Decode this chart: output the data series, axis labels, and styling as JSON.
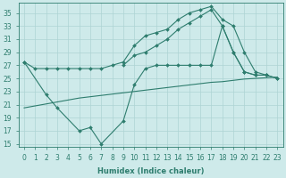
{
  "bg_color": "#ceeaea",
  "line_color": "#2e7d6e",
  "grid_color": "#aed4d4",
  "xlabel": "Humidex (Indice chaleur)",
  "ylim": [
    14.5,
    36.5
  ],
  "xlim": [
    -0.5,
    23.5
  ],
  "yticks": [
    15,
    17,
    19,
    21,
    23,
    25,
    27,
    29,
    31,
    33,
    35
  ],
  "line1_x": [
    0,
    1,
    2,
    3,
    4,
    5,
    6,
    7,
    8,
    9,
    10,
    11,
    12,
    13,
    14,
    15,
    16,
    17,
    18,
    19,
    20,
    21,
    22
  ],
  "line1_y": [
    27.5,
    26.5,
    26.5,
    26.5,
    26.5,
    26.5,
    26.5,
    26.5,
    27.0,
    27.5,
    30.0,
    31.5,
    32.0,
    32.5,
    34.0,
    35.0,
    35.5,
    36.0,
    34.0,
    33.0,
    29.0,
    26.0,
    25.5
  ],
  "line2_x": [
    9,
    10,
    11,
    12,
    13,
    14,
    15,
    16,
    17,
    18,
    19,
    20,
    21,
    22,
    23
  ],
  "line2_y": [
    27.0,
    28.5,
    29.0,
    30.0,
    31.0,
    32.5,
    33.5,
    34.5,
    35.5,
    33.0,
    29.0,
    26.0,
    25.5,
    25.5,
    25.0
  ],
  "line3_x": [
    0,
    1,
    2,
    3,
    4,
    5,
    6,
    7,
    8,
    9,
    10,
    11,
    12,
    13,
    14,
    15,
    16,
    17,
    18,
    19,
    20,
    21,
    22,
    23
  ],
  "line3_y": [
    20.5,
    20.8,
    21.1,
    21.4,
    21.7,
    22.0,
    22.2,
    22.4,
    22.6,
    22.8,
    23.0,
    23.2,
    23.4,
    23.6,
    23.8,
    24.0,
    24.2,
    24.4,
    24.5,
    24.7,
    24.9,
    25.0,
    25.1,
    25.2
  ],
  "line4_x": [
    0,
    2,
    3,
    5,
    6,
    7,
    9,
    10,
    11,
    12,
    13,
    14,
    15,
    16,
    17,
    18,
    19,
    20,
    21,
    22,
    23
  ],
  "line4_y": [
    27.5,
    22.5,
    20.5,
    17.0,
    17.5,
    15.0,
    18.5,
    24.0,
    26.5,
    27.0,
    27.0,
    27.0,
    27.0,
    27.0,
    27.0,
    33.0,
    29.0,
    26.0,
    25.5,
    25.5,
    25.0
  ],
  "tick_fontsize": 5.5,
  "xlabel_fontsize": 6.0
}
